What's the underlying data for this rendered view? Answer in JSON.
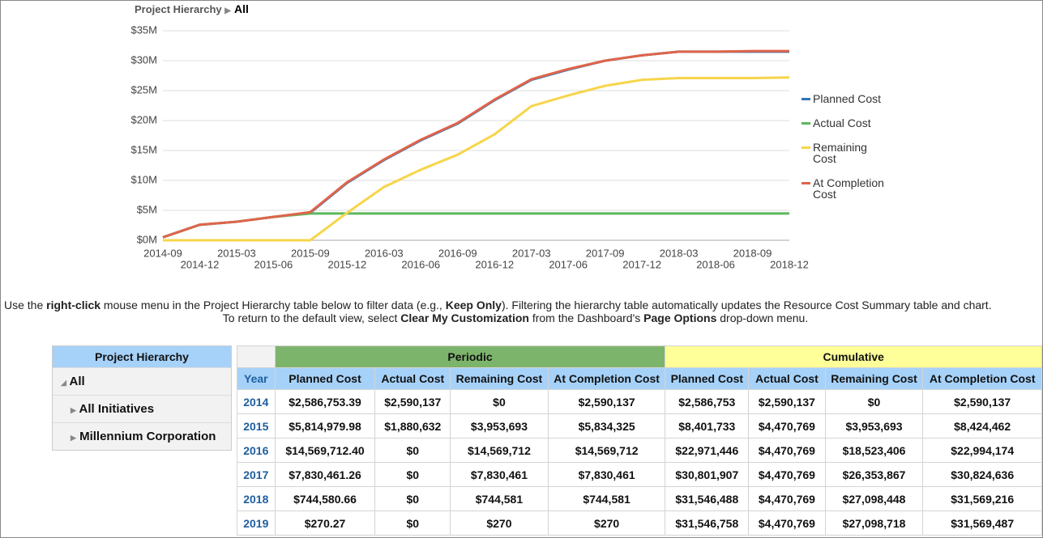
{
  "breadcrumb": {
    "label": "Project Hierarchy",
    "value": "All"
  },
  "chart_data": {
    "type": "line",
    "x": [
      "2014-09",
      "2014-12",
      "2015-03",
      "2015-06",
      "2015-09",
      "2015-12",
      "2016-03",
      "2016-06",
      "2016-09",
      "2016-12",
      "2017-03",
      "2017-06",
      "2017-09",
      "2017-12",
      "2018-03",
      "2018-06",
      "2018-09",
      "2018-12"
    ],
    "series": [
      {
        "name": "Planned Cost",
        "color": "#2e78b7",
        "values": [
          500000,
          2590000,
          3100000,
          3900000,
          4600000,
          9600000,
          13400000,
          16700000,
          19500000,
          23400000,
          26800000,
          28500000,
          30000000,
          30900000,
          31500000,
          31500000,
          31500000,
          31500000
        ]
      },
      {
        "name": "Actual Cost",
        "color": "#5cb85c",
        "values": [
          500000,
          2590000,
          3100000,
          3900000,
          4470000,
          4470000,
          4470000,
          4470000,
          4470000,
          4470000,
          4470000,
          4470000,
          4470000,
          4470000,
          4470000,
          4470000,
          4470000,
          4470000
        ]
      },
      {
        "name": "Remaining Cost",
        "color": "#f7d54a",
        "values": [
          0,
          0,
          0,
          0,
          0,
          4600000,
          8900000,
          11800000,
          14300000,
          17700000,
          22400000,
          24200000,
          25800000,
          26800000,
          27100000,
          27100000,
          27100000,
          27200000
        ]
      },
      {
        "name": "At Completion Cost",
        "color": "#e0644a",
        "values": [
          500000,
          2600000,
          3100000,
          3900000,
          4700000,
          9700000,
          13500000,
          16800000,
          19600000,
          23500000,
          26900000,
          28600000,
          30000000,
          30900000,
          31500000,
          31500000,
          31600000,
          31600000
        ]
      }
    ],
    "ylim": [
      0,
      35000000
    ],
    "yticks": [
      {
        "value": 0,
        "label": "$0M"
      },
      {
        "value": 5000000,
        "label": "$5M"
      },
      {
        "value": 10000000,
        "label": "$10M"
      },
      {
        "value": 15000000,
        "label": "$15M"
      },
      {
        "value": 20000000,
        "label": "$20M"
      },
      {
        "value": 25000000,
        "label": "$25M"
      },
      {
        "value": 30000000,
        "label": "$30M"
      },
      {
        "value": 35000000,
        "label": "$35M"
      }
    ],
    "grid": true,
    "legend": "right"
  },
  "instructions": {
    "line1": [
      "Use the ",
      "right-click",
      " mouse menu in the Project Hierarchy table below to filter data (e.g., ",
      "Keep Only",
      "). Filtering the hierarchy table automatically updates the Resource Cost Summary table and chart."
    ],
    "line2": [
      "To return to the default view, select ",
      "Clear My Customization",
      " from the Dashboard's ",
      "Page Options",
      " drop-down menu."
    ]
  },
  "hierarchy": {
    "title": "Project Hierarchy",
    "items": [
      "All",
      "All Initiatives",
      "Millennium Corporation"
    ]
  },
  "table": {
    "groups": [
      "Periodic",
      "Cumulative"
    ],
    "columns": [
      "Year",
      "Planned Cost",
      "Actual Cost",
      "Remaining Cost",
      "At Completion Cost",
      "Planned Cost",
      "Actual Cost",
      "Remaining Cost",
      "At Completion Cost"
    ],
    "rows": [
      [
        "2014",
        "$2,586,753.39",
        "$2,590,137",
        "$0",
        "$2,590,137",
        "$2,586,753",
        "$2,590,137",
        "$0",
        "$2,590,137"
      ],
      [
        "2015",
        "$5,814,979.98",
        "$1,880,632",
        "$3,953,693",
        "$5,834,325",
        "$8,401,733",
        "$4,470,769",
        "$3,953,693",
        "$8,424,462"
      ],
      [
        "2016",
        "$14,569,712.40",
        "$0",
        "$14,569,712",
        "$14,569,712",
        "$22,971,446",
        "$4,470,769",
        "$18,523,406",
        "$22,994,174"
      ],
      [
        "2017",
        "$7,830,461.26",
        "$0",
        "$7,830,461",
        "$7,830,461",
        "$30,801,907",
        "$4,470,769",
        "$26,353,867",
        "$30,824,636"
      ],
      [
        "2018",
        "$744,580.66",
        "$0",
        "$744,581",
        "$744,581",
        "$31,546,488",
        "$4,470,769",
        "$27,098,448",
        "$31,569,216"
      ],
      [
        "2019",
        "$270.27",
        "$0",
        "$270",
        "$270",
        "$31,546,758",
        "$4,470,769",
        "$27,098,718",
        "$31,569,487"
      ]
    ]
  }
}
